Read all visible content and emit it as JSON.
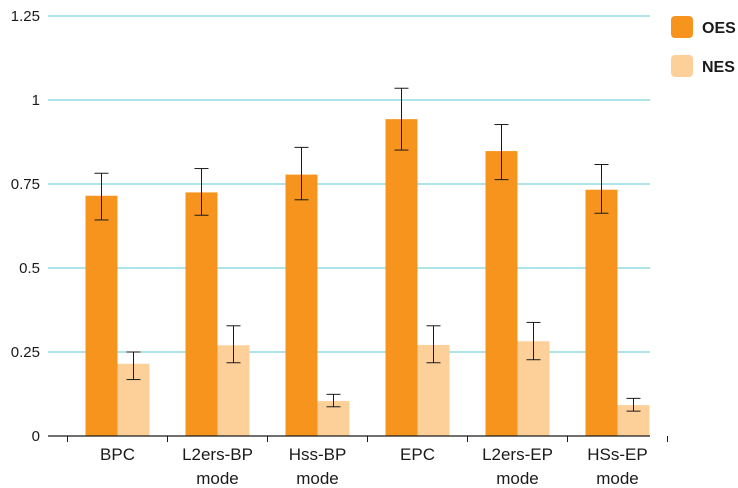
{
  "chart_data": {
    "type": "bar",
    "categories": [
      [
        "BPC"
      ],
      [
        "L2ers-BP",
        "mode"
      ],
      [
        "Hss-BP",
        "mode"
      ],
      [
        "EPC"
      ],
      [
        "L2ers-EP",
        "mode"
      ],
      [
        "HSs-EP",
        "mode"
      ]
    ],
    "series": [
      {
        "name": "OES",
        "color": "#f7941d",
        "values": [
          0.715,
          0.725,
          0.778,
          0.943,
          0.848,
          0.733
        ],
        "error_low": [
          0.643,
          0.657,
          0.703,
          0.851,
          0.763,
          0.663
        ],
        "error_high": [
          0.782,
          0.796,
          0.859,
          1.035,
          0.927,
          0.808
        ]
      },
      {
        "name": "NES",
        "color": "#fdd09a",
        "values": [
          0.215,
          0.27,
          0.104,
          0.271,
          0.282,
          0.092
        ],
        "error_low": [
          0.168,
          0.218,
          0.087,
          0.218,
          0.227,
          0.074
        ],
        "error_high": [
          0.25,
          0.328,
          0.124,
          0.328,
          0.338,
          0.112
        ]
      }
    ],
    "yticks": [
      "0",
      "0.25",
      "0.5",
      "0.75",
      "1",
      "1.25"
    ],
    "ylim": [
      0,
      1.25
    ],
    "grid": true,
    "grid_color": "#5bc8d6",
    "legend_position": "top-right"
  }
}
